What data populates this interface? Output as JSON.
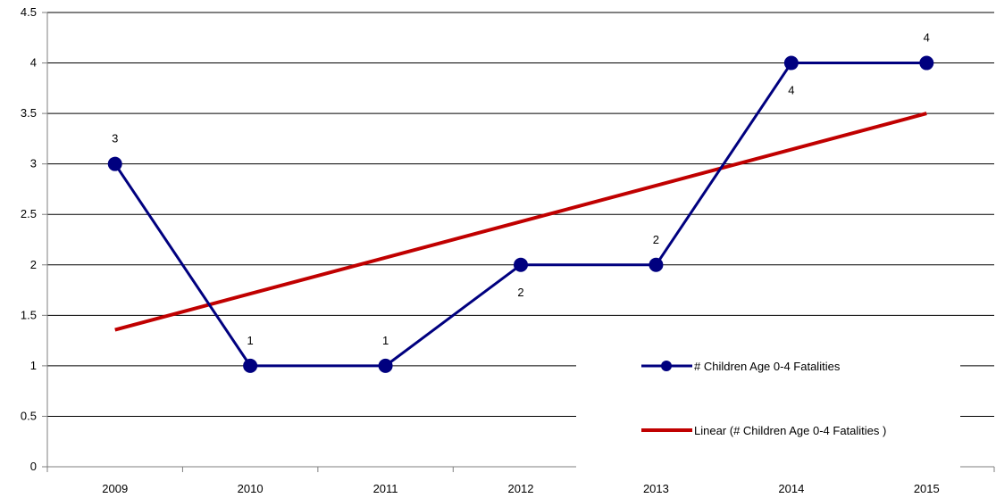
{
  "chart_data": {
    "type": "line",
    "categories": [
      "2009",
      "2010",
      "2011",
      "2012",
      "2013",
      "2014",
      "2015"
    ],
    "series": [
      {
        "name": "# Children Age 0-4 Fatalities",
        "values": [
          3,
          1,
          1,
          2,
          2,
          4,
          4
        ],
        "data_labels": [
          "3",
          "1",
          "1",
          "2",
          "2",
          "4",
          "4"
        ],
        "color": "#00007f",
        "marker": "circle"
      }
    ],
    "trendline": {
      "name": "Linear (# Children Age 0-4 Fatalities )",
      "type": "linear",
      "start": 1.357,
      "end": 3.5,
      "color": "#c00000"
    },
    "ylim": [
      0,
      4.5
    ],
    "yticks": [
      "0",
      "0.5",
      "1",
      "1.5",
      "2",
      "2.5",
      "3",
      "3.5",
      "4",
      "4.5"
    ],
    "grid": true,
    "legend": "right",
    "title": "",
    "xlabel": "",
    "ylabel": ""
  }
}
